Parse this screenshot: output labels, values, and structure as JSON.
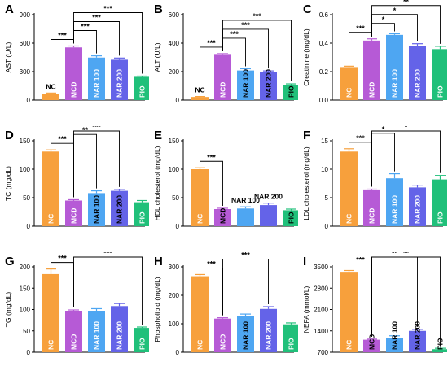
{
  "groups": [
    "NC",
    "MCD",
    "NAR 100",
    "NAR 200",
    "PIO"
  ],
  "colors": {
    "NC": "#f7a03c",
    "MCD": "#b65ad6",
    "NAR 100": "#4ea6f2",
    "NAR 200": "#6463e8",
    "PIO": "#20c07a"
  },
  "chart_data": [
    {
      "panel": "A",
      "type": "bar",
      "ylabel": "AST (U/L)",
      "yticks": [
        0,
        300,
        600,
        900
      ],
      "ylim": [
        0,
        900
      ],
      "categories": [
        "NC",
        "MCD",
        "NAR 100",
        "NAR 200",
        "PIO"
      ],
      "values": [
        68,
        555,
        448,
        425,
        245
      ],
      "errors": [
        6,
        15,
        18,
        18,
        8
      ],
      "labels_above": [
        "NC"
      ],
      "significance": [
        {
          "from": "NC",
          "to": "MCD",
          "label": "***"
        },
        {
          "from": "MCD",
          "to": "NAR 100",
          "label": "***"
        },
        {
          "from": "MCD",
          "to": "NAR 200",
          "label": "***"
        },
        {
          "from": "MCD",
          "to": "PIO",
          "label": "***"
        }
      ]
    },
    {
      "panel": "B",
      "type": "bar",
      "ylabel": "ALT (U/L)",
      "yticks": [
        0,
        200,
        400,
        600
      ],
      "ylim": [
        0,
        600
      ],
      "categories": [
        "NC",
        "MCD",
        "NAR 100",
        "NAR 200",
        "PIO"
      ],
      "values": [
        22,
        318,
        208,
        195,
        108
      ],
      "errors": [
        3,
        8,
        12,
        10,
        6
      ],
      "labels_above": [
        "NC"
      ],
      "significance": [
        {
          "from": "NC",
          "to": "MCD",
          "label": "***"
        },
        {
          "from": "MCD",
          "to": "NAR 100",
          "label": "***"
        },
        {
          "from": "MCD",
          "to": "NAR 200",
          "label": "***"
        },
        {
          "from": "MCD",
          "to": "PIO",
          "label": "***"
        }
      ]
    },
    {
      "panel": "C",
      "type": "bar",
      "ylabel": "Creatinine (mg/dL)",
      "yticks": [
        0.0,
        0.2,
        0.4,
        0.6
      ],
      "ylim": [
        0,
        0.6
      ],
      "categories": [
        "NC",
        "MCD",
        "NAR 100",
        "NAR 200",
        "PIO"
      ],
      "values": [
        0.232,
        0.418,
        0.458,
        0.378,
        0.358
      ],
      "errors": [
        0.006,
        0.012,
        0.008,
        0.018,
        0.02
      ],
      "labels_above": [],
      "significance": [
        {
          "from": "NC",
          "to": "MCD",
          "label": "***"
        },
        {
          "from": "MCD",
          "to": "NAR 100",
          "label": "*"
        },
        {
          "from": "MCD",
          "to": "NAR 200",
          "label": "*"
        },
        {
          "from": "MCD",
          "to": "PIO",
          "label": "**"
        }
      ]
    },
    {
      "panel": "D",
      "type": "bar",
      "ylabel": "TC (mg/dL)",
      "yticks": [
        0,
        50,
        100,
        150
      ],
      "ylim": [
        0,
        150
      ],
      "categories": [
        "NC",
        "MCD",
        "NAR 100",
        "NAR 200",
        "PIO"
      ],
      "values": [
        131,
        45,
        58,
        62,
        42
      ],
      "errors": [
        3,
        1.5,
        4,
        2.5,
        3
      ],
      "labels_above": [],
      "significance": [
        {
          "from": "NC",
          "to": "MCD",
          "label": "***"
        },
        {
          "from": "MCD",
          "to": "NAR 100",
          "label": "**"
        },
        {
          "from": "MCD",
          "to": "NAR 200",
          "label": "***"
        }
      ]
    },
    {
      "panel": "E",
      "type": "bar",
      "ylabel": "HDL cholesterol (mg/dL)",
      "yticks": [
        0,
        50,
        100,
        150
      ],
      "ylim": [
        0,
        150
      ],
      "categories": [
        "NC",
        "MCD",
        "NAR 100",
        "NAR 200",
        "PIO"
      ],
      "values": [
        100,
        30,
        31,
        37,
        28
      ],
      "errors": [
        2.5,
        1.5,
        3,
        3.5,
        2
      ],
      "labels_above": [
        "NAR 100",
        "NAR 200"
      ],
      "significance": [
        {
          "from": "NC",
          "to": "MCD",
          "label": "***"
        }
      ]
    },
    {
      "panel": "F",
      "type": "bar",
      "ylabel": "LDL cholesterol (mg/dL)",
      "yticks": [
        0,
        5,
        10,
        15
      ],
      "ylim": [
        0,
        15
      ],
      "categories": [
        "NC",
        "MCD",
        "NAR 100",
        "NAR 200",
        "PIO"
      ],
      "values": [
        13.1,
        6.3,
        8.4,
        6.8,
        8.2
      ],
      "errors": [
        0.5,
        0.2,
        0.8,
        0.4,
        0.7
      ],
      "labels_above": [],
      "significance": [
        {
          "from": "NC",
          "to": "MCD",
          "label": "***"
        },
        {
          "from": "MCD",
          "to": "NAR 100",
          "label": "*"
        },
        {
          "from": "MCD",
          "to": "PIO",
          "label": "*"
        }
      ]
    },
    {
      "panel": "G",
      "type": "bar",
      "ylabel": "TG (mg/dL)",
      "yticks": [
        0,
        50,
        100,
        150,
        200
      ],
      "ylim": [
        0,
        200
      ],
      "categories": [
        "NC",
        "MCD",
        "NAR 100",
        "NAR 200",
        "PIO"
      ],
      "values": [
        183,
        96,
        97,
        108,
        57
      ],
      "errors": [
        12,
        3,
        5,
        6,
        2
      ],
      "labels_above": [],
      "significance": [
        {
          "from": "NC",
          "to": "MCD",
          "label": "***"
        },
        {
          "from": "MCD",
          "to": "PIO",
          "label": "***"
        }
      ]
    },
    {
      "panel": "H",
      "type": "bar",
      "ylabel": "Phospholipid (mg/dL)",
      "yticks": [
        0,
        100,
        200,
        300
      ],
      "ylim": [
        0,
        300
      ],
      "categories": [
        "NC",
        "MCD",
        "NAR 100",
        "NAR 200",
        "PIO"
      ],
      "values": [
        267,
        118,
        128,
        152,
        98
      ],
      "errors": [
        6,
        3,
        6,
        8,
        5
      ],
      "labels_above": [],
      "significance": [
        {
          "from": "NC",
          "to": "MCD",
          "label": "***"
        },
        {
          "from": "MCD",
          "to": "NAR 200",
          "label": "***"
        }
      ]
    },
    {
      "panel": "I",
      "type": "bar",
      "ylabel": "NEFA (mmol/L)",
      "yticks": [
        700,
        1400,
        2100,
        2800,
        3500
      ],
      "ylim": [
        700,
        3500
      ],
      "categories": [
        "NC",
        "MCD",
        "NAR 100",
        "NAR 200",
        "PIO"
      ],
      "values": [
        3310,
        1110,
        1160,
        1400,
        800
      ],
      "errors": [
        70,
        20,
        80,
        50,
        30
      ],
      "labels_above": [],
      "significance": [
        {
          "from": "NC",
          "to": "MCD",
          "label": "***"
        },
        {
          "from": "MCD",
          "to": "NAR 200",
          "label": "**"
        },
        {
          "from": "MCD",
          "to": "PIO",
          "label": "**"
        }
      ]
    }
  ]
}
